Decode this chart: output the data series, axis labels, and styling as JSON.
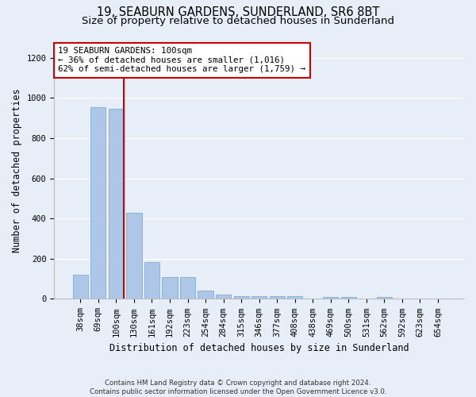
{
  "title1": "19, SEABURN GARDENS, SUNDERLAND, SR6 8BT",
  "title2": "Size of property relative to detached houses in Sunderland",
  "xlabel": "Distribution of detached houses by size in Sunderland",
  "ylabel": "Number of detached properties",
  "footnote": "Contains HM Land Registry data © Crown copyright and database right 2024.\nContains public sector information licensed under the Open Government Licence v3.0.",
  "categories": [
    "38sqm",
    "69sqm",
    "100sqm",
    "130sqm",
    "161sqm",
    "192sqm",
    "223sqm",
    "254sqm",
    "284sqm",
    "315sqm",
    "346sqm",
    "377sqm",
    "408sqm",
    "438sqm",
    "469sqm",
    "500sqm",
    "531sqm",
    "562sqm",
    "592sqm",
    "623sqm",
    "654sqm"
  ],
  "values": [
    120,
    955,
    945,
    430,
    185,
    110,
    110,
    42,
    20,
    12,
    15,
    15,
    12,
    0,
    10,
    10,
    0,
    10,
    0,
    0,
    0
  ],
  "bar_color": "#aec6e8",
  "bar_edge_color": "#7aadd4",
  "highlight_bar_index": 2,
  "vline_color": "#cc0000",
  "annotation_text": "19 SEABURN GARDENS: 100sqm\n← 36% of detached houses are smaller (1,016)\n62% of semi-detached houses are larger (1,759) →",
  "annotation_box_color": "#ffffff",
  "annotation_box_edge_color": "#cc0000",
  "ylim": [
    0,
    1280
  ],
  "yticks": [
    0,
    200,
    400,
    600,
    800,
    1000,
    1200
  ],
  "background_color": "#e8eef8",
  "grid_color": "#ffffff",
  "title1_fontsize": 10.5,
  "title2_fontsize": 9.5,
  "xlabel_fontsize": 8.5,
  "ylabel_fontsize": 8.5,
  "tick_fontsize": 7.5,
  "annotation_fontsize": 7.8
}
